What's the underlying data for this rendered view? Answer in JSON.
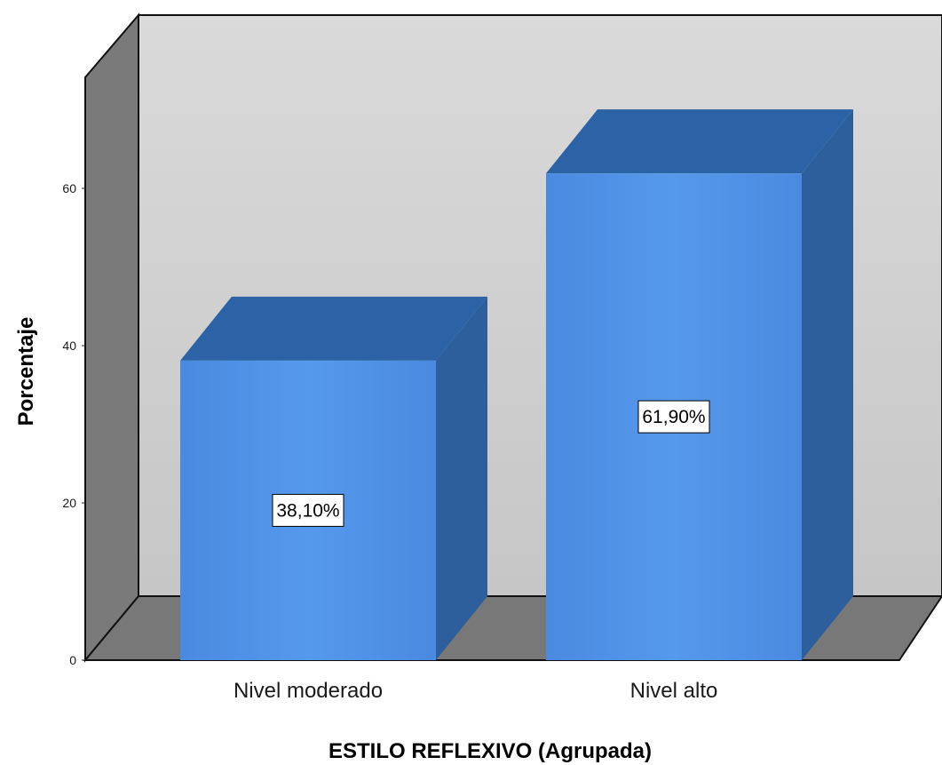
{
  "chart_data": {
    "type": "bar",
    "style": "3d",
    "categories": [
      "Nivel moderado",
      "Nivel alto"
    ],
    "values": [
      38.1,
      61.9
    ],
    "data_labels": [
      "38,10%",
      "61,90%"
    ],
    "title": "",
    "xlabel": "ESTILO REFLEXIVO (Agrupada)",
    "ylabel": "Porcentaje",
    "ylim": [
      0,
      80
    ],
    "yticks": [
      0,
      20,
      40,
      60
    ],
    "grid": false,
    "legend": "none",
    "colors": {
      "bar_front": "#4f90e6",
      "bar_top": "#2b63a6",
      "bar_side": "#2d5f9c",
      "back_wall": "#d0d0d0",
      "side_wall": "#7a7a7a",
      "floor": "#777777"
    }
  }
}
